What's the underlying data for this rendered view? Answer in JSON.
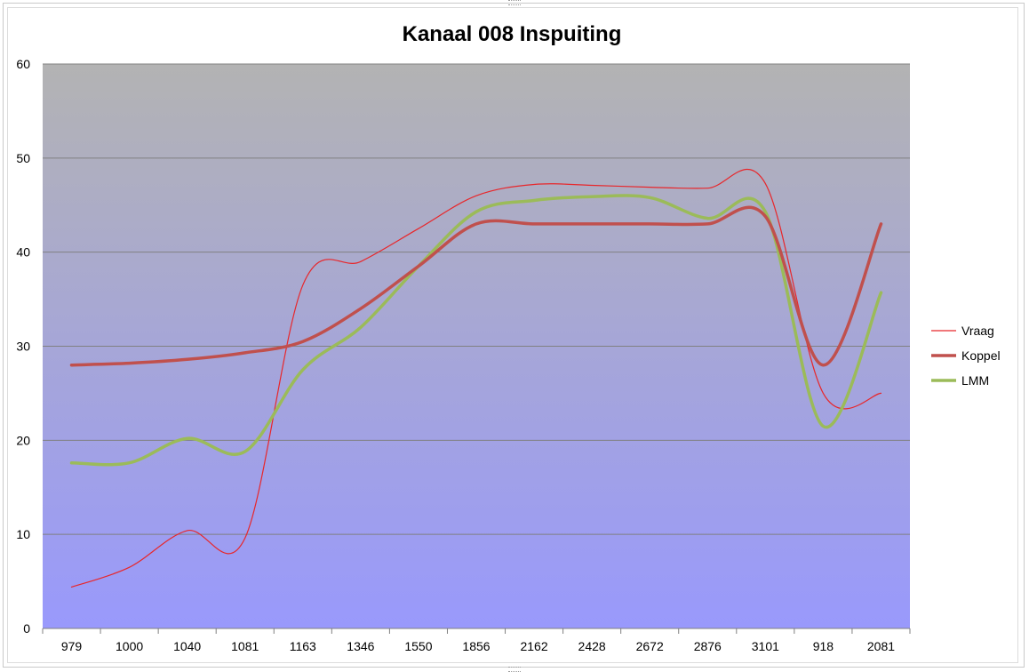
{
  "chart_data": {
    "type": "line",
    "title": "Kanaal 008 Inspuiting",
    "xlabel": "",
    "ylabel": "",
    "categories": [
      "979",
      "1000",
      "1040",
      "1081",
      "1163",
      "1346",
      "1550",
      "1856",
      "2162",
      "2428",
      "2672",
      "2876",
      "3101",
      "918",
      "2081"
    ],
    "ylim": [
      0,
      60
    ],
    "yticks": [
      0,
      10,
      20,
      30,
      40,
      50,
      60
    ],
    "grid": true,
    "legend_position": "right",
    "background": "gradient",
    "series": [
      {
        "name": "Vraag",
        "color": "#e8262a",
        "width": 1.2,
        "values": [
          4.4,
          6.5,
          10.4,
          9.6,
          36.5,
          39.0,
          42.5,
          46.0,
          47.2,
          47.1,
          46.9,
          46.8,
          47.3,
          25.0,
          25.0
        ]
      },
      {
        "name": "Koppel",
        "color": "#c0504d",
        "width": 3.5,
        "values": [
          28.0,
          28.2,
          28.6,
          29.3,
          30.5,
          34.0,
          38.5,
          43.0,
          43.0,
          43.0,
          43.0,
          43.0,
          43.8,
          28.0,
          43.0
        ]
      },
      {
        "name": "LMM",
        "color": "#9bbb59",
        "width": 3.5,
        "values": [
          17.6,
          17.6,
          20.2,
          18.8,
          27.5,
          32.0,
          38.5,
          44.3,
          45.5,
          45.9,
          45.8,
          43.6,
          44.3,
          21.5,
          35.7
        ]
      }
    ]
  }
}
